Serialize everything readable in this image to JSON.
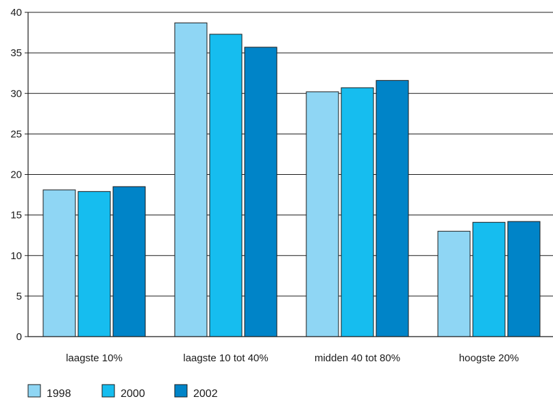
{
  "chart_data": {
    "type": "bar",
    "title": "",
    "xlabel": "",
    "ylabel": "",
    "ylim": [
      0,
      40
    ],
    "yticks": [
      0,
      5,
      10,
      15,
      20,
      25,
      30,
      35,
      40
    ],
    "grid": "horizontal",
    "legend_position": "bottom-left",
    "categories": [
      "laagste 10%",
      "laagste 10 tot 40%",
      "midden 40 tot 80%",
      "hoogste 20%"
    ],
    "series": [
      {
        "name": "1998",
        "color": "#8fd6f4",
        "values": [
          18.1,
          38.7,
          30.2,
          13.0
        ]
      },
      {
        "name": "2000",
        "color": "#16bdef",
        "values": [
          17.9,
          37.3,
          30.7,
          14.1
        ]
      },
      {
        "name": "2002",
        "color": "#0084c8",
        "values": [
          18.5,
          35.7,
          31.6,
          14.2
        ]
      }
    ]
  }
}
